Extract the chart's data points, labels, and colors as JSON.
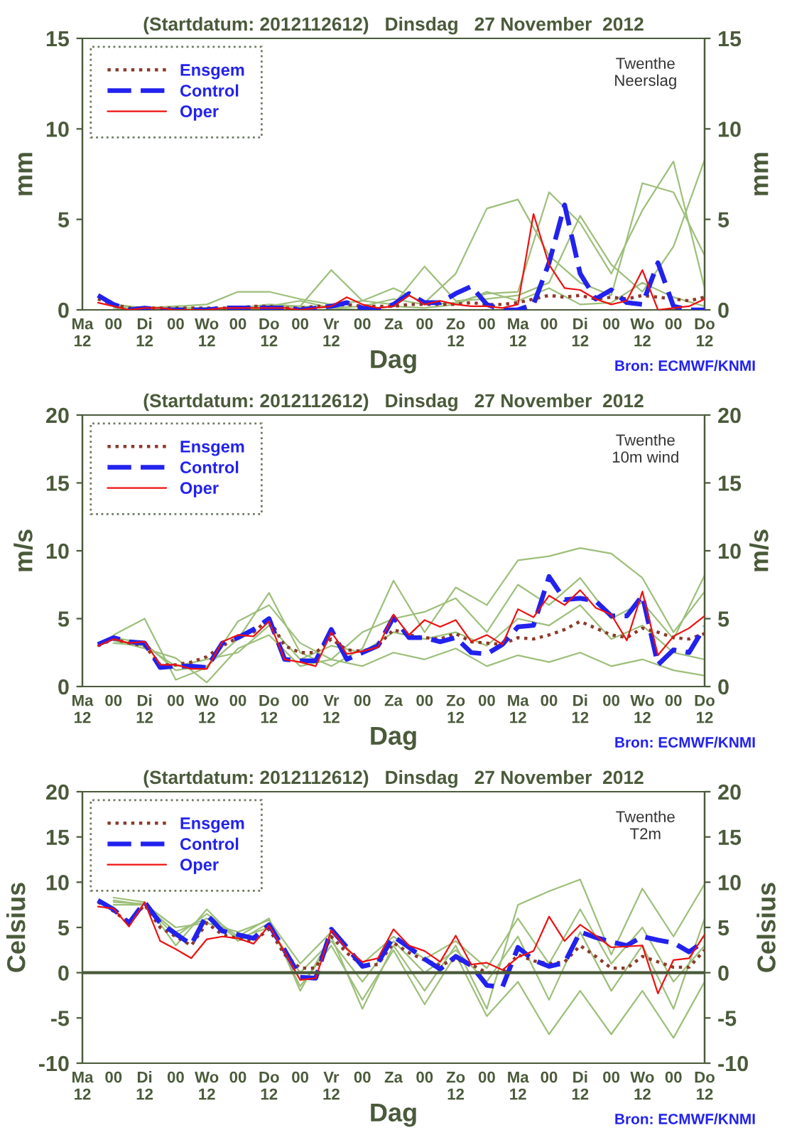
{
  "chart_data": [
    {
      "type": "line",
      "title": "(Startdatum: 2012112612)   Dinsdag   27 November  2012",
      "xlabel": "Dag",
      "ylabel": "mm",
      "y2label": "mm",
      "annotations": [
        "Twenthe\nNeerslag",
        "Bron: ECMWF/KNMI"
      ],
      "categories": [
        "Ma\n12",
        null,
        "00",
        null,
        "Di\n12",
        null,
        "00",
        null,
        "Wo\n12",
        null,
        "00",
        null,
        "Do\n12",
        null,
        "00",
        null,
        "Vr\n12",
        null,
        "00",
        null,
        "Za",
        null,
        "00",
        null,
        "Zo\n12",
        null,
        "00",
        null,
        "Ma\n12",
        null,
        "00",
        null,
        "Di\n12",
        null,
        "00",
        null,
        "Wo\n12",
        null,
        "00",
        null,
        "Do\n12"
      ],
      "ylim": [
        0,
        15
      ],
      "yticks": [
        0,
        5,
        10,
        15
      ],
      "y2lim": [
        0,
        15
      ],
      "y2ticks": [
        0,
        5,
        10,
        15
      ],
      "grid": false,
      "legend": "top left",
      "series": [
        {
          "color": "#9dbf7a",
          "line_style": "solid",
          "values": [
            null,
            null,
            0.2,
            null,
            0.1,
            null,
            0.2,
            null,
            0.3,
            null,
            1.0,
            null,
            1.0,
            null,
            0.6,
            null,
            0.3,
            null,
            0.5,
            null,
            1.2,
            null,
            0.4,
            null,
            2.0,
            null,
            5.6,
            null,
            6.1,
            null,
            3.0,
            null,
            1.5,
            null,
            0.8,
            null,
            7.0,
            null,
            6.5,
            null,
            3.0
          ]
        },
        {
          "color": "#9dbf7a",
          "line_style": "solid",
          "values": [
            null,
            null,
            0.3,
            null,
            0.1,
            null,
            0.1,
            null,
            0.0,
            null,
            0.1,
            null,
            0.2,
            null,
            0.5,
            null,
            0.1,
            null,
            0.2,
            null,
            0.6,
            null,
            0.3,
            null,
            0.4,
            null,
            0.9,
            null,
            1.0,
            null,
            6.5,
            null,
            4.8,
            null,
            2.0,
            null,
            5.5,
            null,
            8.2,
            null,
            1.2
          ]
        },
        {
          "color": "#9dbf7a",
          "line_style": "solid",
          "values": [
            null,
            null,
            0.2,
            null,
            0.1,
            null,
            0.1,
            null,
            0.1,
            null,
            0.1,
            null,
            0.3,
            null,
            0.2,
            null,
            2.2,
            null,
            0.5,
            null,
            0.3,
            null,
            2.4,
            null,
            0.5,
            null,
            0.6,
            null,
            0.8,
            null,
            1.5,
            null,
            5.2,
            null,
            2.5,
            null,
            1.0,
            null,
            3.5,
            null,
            8.3
          ]
        },
        {
          "color": "#9dbf7a",
          "line_style": "solid",
          "values": [
            null,
            null,
            0.1,
            null,
            0.0,
            null,
            0.0,
            null,
            0.1,
            null,
            0.0,
            null,
            0.1,
            null,
            0.2,
            null,
            0.1,
            null,
            0.0,
            null,
            0.2,
            null,
            0.1,
            null,
            0.3,
            null,
            1.0,
            null,
            0.5,
            null,
            1.2,
            null,
            0.3,
            null,
            0.4,
            null,
            1.5,
            null,
            0.7,
            null,
            0.2
          ]
        },
        {
          "name": "Ensgem",
          "color": "#8b3a2a",
          "line_style": "dotted",
          "values": [
            null,
            0.6,
            0.3,
            0.1,
            0.1,
            0.1,
            0.1,
            0.1,
            0.1,
            0.1,
            0.1,
            0.2,
            0.2,
            0.1,
            0.1,
            0.2,
            0.2,
            0.3,
            0.2,
            0.2,
            0.2,
            0.3,
            0.3,
            0.3,
            0.3,
            0.4,
            0.3,
            0.3,
            0.4,
            0.6,
            0.8,
            0.7,
            0.8,
            0.6,
            0.7,
            0.6,
            0.8,
            0.7,
            0.6,
            0.5,
            0.7
          ]
        },
        {
          "name": "Control",
          "color": "#2222ee",
          "line_style": "dashed",
          "values": [
            null,
            0.8,
            0.3,
            0.0,
            0.1,
            0.0,
            0.0,
            0.0,
            0.0,
            0.1,
            0.1,
            0.1,
            0.1,
            0.1,
            0.0,
            0.1,
            0.2,
            0.4,
            0.1,
            0.0,
            0.3,
            0.9,
            0.4,
            0.4,
            0.9,
            1.3,
            0.3,
            0.0,
            0.0,
            0.3,
            2.6,
            5.8,
            2.0,
            0.6,
            1.1,
            0.4,
            0.3,
            2.6,
            0.2,
            0.0,
            0.0
          ]
        },
        {
          "name": "Oper",
          "color": "#ee1111",
          "line_style": "solid",
          "values": [
            null,
            0.4,
            0.2,
            0.0,
            0.1,
            0.1,
            0.0,
            0.0,
            0.0,
            0.1,
            0.1,
            0.1,
            0.1,
            0.1,
            0.0,
            0.1,
            0.2,
            0.7,
            0.3,
            0.1,
            0.2,
            0.8,
            0.3,
            0.5,
            0.3,
            0.2,
            0.2,
            0.1,
            0.3,
            5.3,
            2.5,
            1.2,
            1.1,
            0.6,
            0.3,
            0.5,
            2.2,
            0.0,
            0.1,
            0.2,
            0.6
          ]
        }
      ]
    },
    {
      "type": "line",
      "title": "(Startdatum: 2012112612)   Dinsdag   27 November  2012",
      "xlabel": "Dag",
      "ylabel": "m/s",
      "y2label": "m/s",
      "annotations": [
        "Twenthe\n10m wind",
        "Bron: ECMWF/KNMI"
      ],
      "categories": [
        "Ma\n12",
        null,
        "00",
        null,
        "Di\n12",
        null,
        "00",
        null,
        "Wo\n12",
        null,
        "00",
        null,
        "Do\n12",
        null,
        "00",
        null,
        "Vr\n12",
        null,
        "00",
        null,
        "Za",
        null,
        "00",
        null,
        "Zo\n12",
        null,
        "00",
        null,
        "Ma\n12",
        null,
        "00",
        null,
        "Di\n12",
        null,
        "00",
        null,
        "Wo\n12",
        null,
        "00",
        null,
        "Do\n12"
      ],
      "ylim": [
        0,
        20
      ],
      "yticks": [
        0,
        5,
        10,
        15,
        20
      ],
      "y2lim": [
        0,
        20
      ],
      "y2ticks": [
        0,
        5,
        10,
        15,
        20
      ],
      "grid": false,
      "legend": "top left",
      "series": [
        {
          "color": "#9dbf7a",
          "line_style": "solid",
          "values": [
            null,
            null,
            3.6,
            null,
            3.2,
            null,
            1.2,
            null,
            1.5,
            null,
            3.5,
            null,
            6.9,
            null,
            2.5,
            null,
            1.5,
            null,
            2.8,
            null,
            7.8,
            null,
            4.0,
            null,
            7.3,
            null,
            6.0,
            null,
            9.3,
            null,
            9.6,
            null,
            10.2,
            null,
            9.8,
            null,
            8.0,
            null,
            4.0,
            null,
            7.0
          ]
        },
        {
          "color": "#9dbf7a",
          "line_style": "solid",
          "values": [
            null,
            null,
            3.8,
            null,
            5.0,
            null,
            0.5,
            null,
            1.4,
            null,
            4.8,
            null,
            6.0,
            null,
            3.2,
            null,
            2.0,
            null,
            4.0,
            null,
            5.0,
            null,
            5.5,
            null,
            6.5,
            null,
            4.0,
            null,
            7.5,
            null,
            6.0,
            null,
            8.0,
            null,
            5.0,
            null,
            6.2,
            null,
            3.5,
            null,
            8.2
          ]
        },
        {
          "color": "#9dbf7a",
          "line_style": "solid",
          "values": [
            null,
            null,
            3.4,
            null,
            2.8,
            null,
            2.1,
            null,
            0.3,
            null,
            2.8,
            null,
            3.8,
            null,
            1.5,
            null,
            2.0,
            null,
            1.5,
            null,
            2.5,
            null,
            2.0,
            null,
            2.8,
            null,
            1.5,
            null,
            2.3,
            null,
            1.8,
            null,
            2.5,
            null,
            1.5,
            null,
            2.0,
            null,
            1.2,
            null,
            0.8
          ]
        },
        {
          "color": "#9dbf7a",
          "line_style": "solid",
          "values": [
            null,
            null,
            3.2,
            null,
            3.0,
            null,
            1.5,
            null,
            2.0,
            null,
            2.5,
            null,
            4.5,
            null,
            2.0,
            null,
            3.0,
            null,
            2.5,
            null,
            4.0,
            null,
            3.5,
            null,
            4.0,
            null,
            3.0,
            null,
            5.0,
            null,
            4.5,
            null,
            6.0,
            null,
            3.5,
            null,
            4.5,
            null,
            2.5,
            null,
            2.0
          ]
        },
        {
          "name": "Ensgem",
          "color": "#8b3a2a",
          "line_style": "dotted",
          "values": [
            null,
            3.0,
            3.5,
            3.2,
            3.0,
            1.6,
            1.6,
            1.8,
            2.2,
            3.0,
            3.6,
            4.0,
            5.0,
            3.0,
            2.5,
            2.5,
            3.5,
            2.7,
            2.6,
            3.0,
            4.2,
            3.8,
            3.6,
            3.5,
            3.9,
            3.3,
            3.2,
            3.1,
            3.6,
            3.5,
            3.8,
            4.2,
            4.8,
            4.3,
            3.8,
            3.6,
            4.3,
            4.0,
            3.6,
            3.5,
            3.9
          ]
        },
        {
          "name": "Control",
          "color": "#2222ee",
          "line_style": "dashed",
          "values": [
            null,
            3.1,
            3.6,
            3.3,
            3.2,
            1.4,
            1.5,
            1.5,
            1.4,
            3.2,
            3.6,
            4.2,
            5.0,
            2.0,
            1.9,
            1.9,
            4.2,
            2.0,
            2.5,
            3.0,
            5.1,
            3.6,
            3.6,
            3.3,
            3.6,
            2.5,
            2.4,
            3.1,
            4.4,
            4.5,
            8.1,
            6.4,
            6.5,
            6.3,
            5.2,
            5.2,
            6.7,
            1.6,
            2.7,
            2.5,
            4.4
          ]
        },
        {
          "name": "Oper",
          "color": "#ee1111",
          "line_style": "solid",
          "values": [
            null,
            3.0,
            3.5,
            3.2,
            3.3,
            1.6,
            1.6,
            1.3,
            1.3,
            3.3,
            3.8,
            3.7,
            4.8,
            2.0,
            1.8,
            1.5,
            4.0,
            2.4,
            2.6,
            2.9,
            5.3,
            3.8,
            4.9,
            4.4,
            4.9,
            3.3,
            3.8,
            3.1,
            5.7,
            5.1,
            6.7,
            6.0,
            7.1,
            5.8,
            5.3,
            3.4,
            7.0,
            2.3,
            3.7,
            4.3,
            5.2
          ]
        }
      ]
    },
    {
      "type": "line",
      "title": "(Startdatum: 2012112612)   Dinsdag   27 November  2012",
      "xlabel": "Dag",
      "ylabel": "Celsius",
      "y2label": "Celsius",
      "annotations": [
        "Twenthe\nT2m",
        "Bron: ECMWF/KNMI"
      ],
      "categories": [
        "Ma\n12",
        null,
        "00",
        null,
        "Di\n12",
        null,
        "00",
        null,
        "Wo\n12",
        null,
        "00",
        null,
        "Do\n12",
        null,
        "00",
        null,
        "Vr\n12",
        null,
        "00",
        null,
        "Za",
        null,
        "00",
        null,
        "Zo\n12",
        null,
        "00",
        null,
        "Ma\n12",
        null,
        "00",
        null,
        "Di\n12",
        null,
        "00",
        null,
        "Wo\n12",
        null,
        "00",
        null,
        "Do\n12"
      ],
      "ylim": [
        -10,
        20
      ],
      "yticks": [
        -10,
        -5,
        0,
        5,
        10,
        15,
        20
      ],
      "y2lim": [
        -10,
        20
      ],
      "y2ticks": [
        -10,
        -5,
        0,
        5,
        10,
        15,
        20
      ],
      "grid": false,
      "legend": "top left",
      "ref_lines": [
        {
          "axis": "y",
          "value": 0,
          "color": "#4a5a3a",
          "line_style": "solid"
        }
      ],
      "series": [
        {
          "color": "#9dbf7a",
          "line_style": "solid",
          "values": [
            null,
            null,
            7.5,
            null,
            7.5,
            null,
            4.0,
            null,
            6.5,
            null,
            4.0,
            null,
            6.0,
            null,
            -2.0,
            null,
            4.0,
            null,
            -4.0,
            null,
            3.0,
            null,
            -2.0,
            null,
            3.0,
            null,
            -4.0,
            null,
            7.5,
            null,
            9.0,
            null,
            10.3,
            null,
            2.0,
            null,
            9.3,
            null,
            4.0,
            null,
            9.8
          ]
        },
        {
          "color": "#9dbf7a",
          "line_style": "solid",
          "values": [
            null,
            null,
            8.3,
            null,
            7.8,
            null,
            3.0,
            null,
            7.0,
            null,
            3.5,
            null,
            5.5,
            null,
            -1.5,
            null,
            3.0,
            null,
            -3.0,
            null,
            2.5,
            null,
            -3.5,
            null,
            2.0,
            null,
            -4.8,
            null,
            -1.0,
            null,
            -6.8,
            null,
            -2.0,
            null,
            -6.8,
            null,
            -2.0,
            null,
            -7.2,
            null,
            -1.0
          ]
        },
        {
          "color": "#9dbf7a",
          "line_style": "solid",
          "values": [
            null,
            null,
            8.0,
            null,
            7.5,
            null,
            4.5,
            null,
            6.0,
            null,
            3.8,
            null,
            5.0,
            null,
            0.0,
            null,
            3.5,
            null,
            -1.0,
            null,
            3.5,
            null,
            0.0,
            null,
            2.5,
            null,
            -1.0,
            null,
            4.0,
            null,
            -3.0,
            null,
            4.5,
            null,
            -2.0,
            null,
            3.0,
            null,
            -4.0,
            null,
            6.0
          ]
        },
        {
          "color": "#9dbf7a",
          "line_style": "solid",
          "values": [
            null,
            null,
            7.8,
            null,
            7.6,
            null,
            5.0,
            null,
            5.5,
            null,
            4.5,
            null,
            5.8,
            null,
            1.0,
            null,
            4.5,
            null,
            1.0,
            null,
            4.0,
            null,
            1.5,
            null,
            3.5,
            null,
            0.5,
            null,
            6.0,
            null,
            1.0,
            null,
            7.0,
            null,
            1.0,
            null,
            5.0,
            null,
            -1.0,
            null,
            3.0
          ]
        },
        {
          "name": "Ensgem",
          "color": "#8b3a2a",
          "line_style": "dotted",
          "values": [
            null,
            7.8,
            6.8,
            5.5,
            7.5,
            5.0,
            4.0,
            3.0,
            5.5,
            4.2,
            3.8,
            3.5,
            4.8,
            2.0,
            0.5,
            0.5,
            4.0,
            2.2,
            0.8,
            0.9,
            3.3,
            2.2,
            1.4,
            0.8,
            1.5,
            0.9,
            0.0,
            0.0,
            2.0,
            1.3,
            1.0,
            1.2,
            3.0,
            1.8,
            0.5,
            0.5,
            1.8,
            1.2,
            0.6,
            0.6,
            2.5
          ]
        },
        {
          "name": "Control",
          "color": "#2222ee",
          "line_style": "dashed",
          "values": [
            null,
            8.0,
            7.0,
            5.5,
            7.8,
            5.5,
            4.3,
            3.1,
            6.4,
            4.6,
            4.2,
            3.8,
            5.3,
            2.5,
            -0.5,
            -0.6,
            4.8,
            2.8,
            0.7,
            1.1,
            4.0,
            2.8,
            1.5,
            0.4,
            1.8,
            0.8,
            -1.4,
            -1.6,
            2.8,
            1.4,
            0.7,
            1.1,
            4.5,
            3.9,
            3.4,
            3.0,
            4.0,
            3.6,
            3.3,
            2.3,
            3.5
          ]
        },
        {
          "name": "Oper",
          "color": "#ee1111",
          "line_style": "solid",
          "values": [
            null,
            7.3,
            7.1,
            5.1,
            7.8,
            3.5,
            2.6,
            1.6,
            3.7,
            4.0,
            3.8,
            3.2,
            5.2,
            2.3,
            -0.8,
            -0.6,
            4.7,
            2.6,
            1.2,
            1.6,
            4.8,
            3.0,
            2.4,
            1.2,
            4.1,
            0.9,
            1.1,
            0.3,
            1.7,
            2.4,
            6.2,
            3.5,
            5.3,
            4.1,
            2.8,
            2.9,
            3.0,
            -2.3,
            1.4,
            1.6,
            4.2
          ]
        }
      ]
    }
  ]
}
